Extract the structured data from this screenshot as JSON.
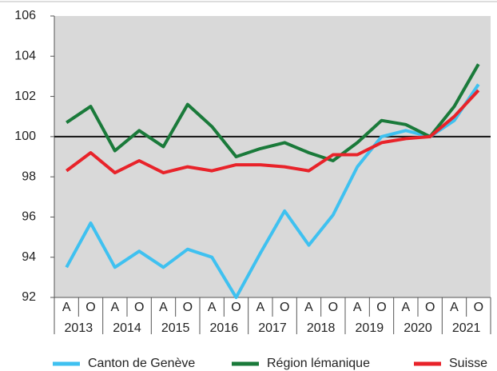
{
  "chart_data": {
    "type": "line",
    "categories": [
      "A",
      "O",
      "A",
      "O",
      "A",
      "O",
      "A",
      "O",
      "A",
      "O",
      "A",
      "O",
      "A",
      "O",
      "A",
      "O",
      "A",
      "O"
    ],
    "years": [
      "2013",
      "2014",
      "2015",
      "2016",
      "2017",
      "2018",
      "2019",
      "2020",
      "2021"
    ],
    "series": [
      {
        "name": "Canton de Genève",
        "color": "#3fc1f0",
        "values": [
          93.5,
          95.7,
          93.5,
          94.3,
          93.5,
          94.4,
          94.0,
          92.0,
          94.2,
          96.3,
          94.6,
          96.1,
          98.5,
          100.0,
          100.3,
          100.0,
          100.8,
          102.6
        ]
      },
      {
        "name": "Région lémanique",
        "color": "#1a7a3a",
        "values": [
          100.7,
          101.5,
          99.3,
          100.3,
          99.5,
          101.6,
          100.5,
          99.0,
          99.4,
          99.7,
          99.2,
          98.8,
          99.7,
          100.8,
          100.6,
          100.0,
          101.5,
          103.6
        ]
      },
      {
        "name": "Suisse",
        "color": "#e8232a",
        "values": [
          98.3,
          99.2,
          98.2,
          98.8,
          98.2,
          98.5,
          98.3,
          98.6,
          98.6,
          98.5,
          98.3,
          99.1,
          99.1,
          99.7,
          99.9,
          100.0,
          101.0,
          102.3
        ]
      }
    ],
    "ylim": [
      92,
      106
    ],
    "yticks": [
      92,
      94,
      96,
      98,
      100,
      102,
      104,
      106
    ],
    "reference_line": 100,
    "background": "#d9d9d9"
  }
}
